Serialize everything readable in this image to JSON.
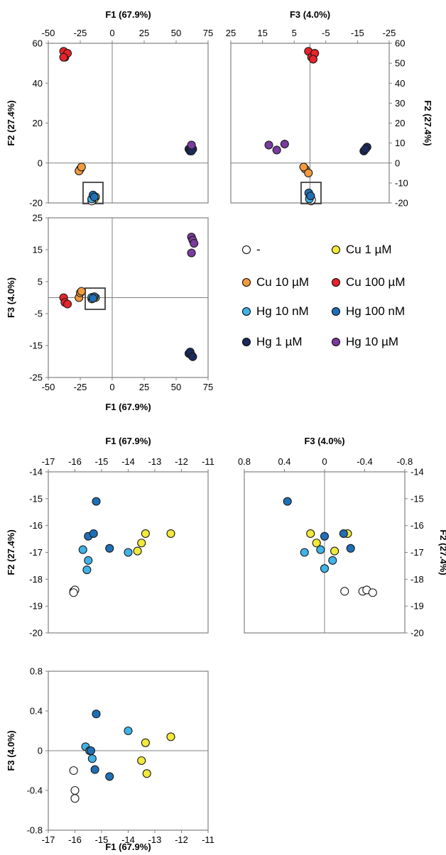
{
  "legend": [
    {
      "label": "-",
      "color": "#ffffff"
    },
    {
      "label": "Cu 1 µM",
      "color": "#f2e93a"
    },
    {
      "label": "Cu 10 µM",
      "color": "#f39a3c"
    },
    {
      "label": "Cu 100 µM",
      "color": "#e8232a"
    },
    {
      "label": "Hg 10 nM",
      "color": "#3fb3e6"
    },
    {
      "label": "Hg 100 nM",
      "color": "#1f6fb6"
    },
    {
      "label": "Hg 1 µM",
      "color": "#1b2a5c"
    },
    {
      "label": "Hg 10 µM",
      "color": "#7a3b9e"
    }
  ],
  "chart_data": [
    {
      "id": "overview-f1-f2",
      "type": "scatter",
      "xlabel": "F1 (67.9%)",
      "ylabel": "F2 (27.4%)",
      "xlim": [
        -50,
        75
      ],
      "ylim": [
        -20,
        60
      ],
      "xticks": [
        -50,
        -25,
        0,
        25,
        50,
        75
      ],
      "yticks": [
        -20,
        0,
        20,
        40,
        60
      ],
      "series": [
        {
          "name": "Cu 100 µM",
          "x": [
            -38,
            -37,
            -35,
            -38
          ],
          "y": [
            56,
            53,
            55,
            53
          ]
        },
        {
          "name": "Cu 10 µM",
          "x": [
            -25,
            -26,
            -24
          ],
          "y": [
            -3,
            -4,
            -2
          ]
        },
        {
          "name": "Hg 1 µM",
          "x": [
            60,
            62,
            61,
            63,
            62
          ],
          "y": [
            7,
            8,
            6,
            7,
            6
          ]
        },
        {
          "name": "Hg 10 µM",
          "x": [
            62
          ],
          "y": [
            9
          ]
        },
        {
          "name": "Cu 1 µM",
          "x": [
            -13,
            -14
          ],
          "y": [
            -17,
            -18
          ]
        },
        {
          "name": "-",
          "x": [
            -16,
            -16
          ],
          "y": [
            -19,
            -18
          ]
        },
        {
          "name": "Hg 10 nM",
          "x": [
            -15,
            -16
          ],
          "y": [
            -17,
            -18
          ]
        },
        {
          "name": "Hg 100 nM",
          "x": [
            -15,
            -14
          ],
          "y": [
            -16,
            -17
          ]
        }
      ]
    },
    {
      "id": "overview-f3-f2",
      "type": "scatter",
      "xlabel": "F3 (4.0%)",
      "ylabel": "F2 (27.4%)",
      "xlim": [
        25,
        -25
      ],
      "ylim": [
        -20,
        60
      ],
      "xticks": [
        25,
        15,
        5,
        -5,
        -15,
        -25
      ],
      "yticks": [
        -20,
        -10,
        0,
        10,
        20,
        30,
        40,
        50,
        60
      ],
      "series": [
        {
          "name": "Cu 100 µM",
          "x": [
            0.5,
            -0.5,
            -1.5,
            -1
          ],
          "y": [
            56,
            53,
            55,
            52
          ]
        },
        {
          "name": "Cu 10 µM",
          "x": [
            1.5,
            0.5,
            2
          ],
          "y": [
            -3,
            -5,
            -2
          ]
        },
        {
          "name": "Hg 10 µM",
          "x": [
            13,
            10.5,
            8
          ],
          "y": [
            9,
            6.5,
            9.5
          ]
        },
        {
          "name": "Hg 1 µM",
          "x": [
            -17,
            -18,
            -17.5
          ],
          "y": [
            6,
            8,
            7
          ]
        },
        {
          "name": "Cu 1 µM",
          "x": [
            -0.2,
            0.1
          ],
          "y": [
            -17,
            -18
          ]
        },
        {
          "name": "-",
          "x": [
            -0.3,
            -0.5
          ],
          "y": [
            -19,
            -18.5
          ]
        },
        {
          "name": "Hg 10 nM",
          "x": [
            0,
            0.2
          ],
          "y": [
            -17,
            -18
          ]
        },
        {
          "name": "Hg 100 nM",
          "x": [
            0.4,
            -0.2
          ],
          "y": [
            -15,
            -16.5
          ]
        }
      ]
    },
    {
      "id": "overview-f1-f3",
      "type": "scatter",
      "xlabel": "F1 (67.9%)",
      "ylabel": "F3 (4.0%)",
      "xlim": [
        -50,
        75
      ],
      "ylim": [
        -25,
        25
      ],
      "xticks": [
        -50,
        -25,
        0,
        25,
        50,
        75
      ],
      "yticks": [
        -25,
        -15,
        -5,
        5,
        15,
        25
      ],
      "series": [
        {
          "name": "Cu 100 µM",
          "x": [
            -38,
            -37,
            -35
          ],
          "y": [
            0,
            -1.5,
            -2
          ]
        },
        {
          "name": "Cu 10 µM",
          "x": [
            -26,
            -25,
            -24
          ],
          "y": [
            0,
            1.5,
            2
          ]
        },
        {
          "name": "Hg 10 µM",
          "x": [
            62,
            63,
            64,
            62
          ],
          "y": [
            19,
            18,
            17,
            14
          ]
        },
        {
          "name": "Hg 1 µM",
          "x": [
            60,
            62,
            61,
            63
          ],
          "y": [
            -17.5,
            -18,
            -17,
            -18.5
          ]
        },
        {
          "name": "Cu 1 µM",
          "x": [
            -13,
            -14
          ],
          "y": [
            0,
            0.2
          ]
        },
        {
          "name": "-",
          "x": [
            -16,
            -15
          ],
          "y": [
            -0.4,
            -0.2
          ]
        },
        {
          "name": "Hg 10 nM",
          "x": [
            -15,
            -16
          ],
          "y": [
            0,
            0.1
          ]
        },
        {
          "name": "Hg 100 nM",
          "x": [
            -14,
            -15
          ],
          "y": [
            0.3,
            -0.2
          ]
        }
      ]
    },
    {
      "id": "zoom-f1-f2",
      "type": "scatter",
      "xlabel": "F1 (67.9%)",
      "ylabel": "F2 (27.4%)",
      "xlim": [
        -17,
        -11
      ],
      "ylim": [
        -20,
        -14
      ],
      "xticks": [
        -17,
        -16,
        -15,
        -14,
        -13,
        -12,
        -11
      ],
      "yticks": [
        -20,
        -19,
        -18,
        -17,
        -16,
        -15,
        -14
      ],
      "series": [
        {
          "name": "-",
          "x": [
            -16.05,
            -16.0,
            -16.05
          ],
          "y": [
            -18.45,
            -18.4,
            -18.5
          ]
        },
        {
          "name": "Cu 1 µM",
          "x": [
            -12.4,
            -13.35,
            -13.5,
            -13.65
          ],
          "y": [
            -16.3,
            -16.3,
            -16.65,
            -16.95
          ]
        },
        {
          "name": "Hg 10 nM",
          "x": [
            -15.7,
            -15.5,
            -15.55,
            -14.0
          ],
          "y": [
            -16.9,
            -17.3,
            -17.65,
            -17.0
          ]
        },
        {
          "name": "Hg 100 nM",
          "x": [
            -15.2,
            -15.5,
            -15.3,
            -14.7
          ],
          "y": [
            -15.1,
            -16.4,
            -16.3,
            -16.85
          ]
        }
      ]
    },
    {
      "id": "zoom-f3-f2",
      "type": "scatter",
      "xlabel": "F3 (4.0%)",
      "ylabel": "F2 (27.4%)",
      "xlim": [
        0.8,
        -0.8
      ],
      "ylim": [
        -20,
        -14
      ],
      "xticks": [
        0.8,
        0.4,
        0.0,
        -0.4,
        -0.8
      ],
      "yticks": [
        -20,
        -19,
        -18,
        -17,
        -16,
        -15,
        -14
      ],
      "series": [
        {
          "name": "-",
          "x": [
            -0.2,
            -0.38,
            -0.42,
            -0.48
          ],
          "y": [
            -18.45,
            -18.45,
            -18.4,
            -18.5
          ]
        },
        {
          "name": "Cu 1 µM",
          "x": [
            0.14,
            0.08,
            -0.1,
            -0.23
          ],
          "y": [
            -16.3,
            -16.65,
            -16.95,
            -16.3
          ]
        },
        {
          "name": "Hg 10 nM",
          "x": [
            0.2,
            0.04,
            -0.08,
            0.0
          ],
          "y": [
            -17.0,
            -16.9,
            -17.3,
            -17.6
          ]
        },
        {
          "name": "Hg 100 nM",
          "x": [
            0.37,
            0.0,
            -0.19,
            -0.26
          ],
          "y": [
            -15.1,
            -16.4,
            -16.3,
            -16.85
          ]
        }
      ]
    },
    {
      "id": "zoom-f1-f3",
      "type": "scatter",
      "xlabel": "F1 (67.9%)",
      "ylabel": "F3 (4.0%)",
      "xlim": [
        -17,
        -11
      ],
      "ylim": [
        -0.8,
        0.8
      ],
      "xticks": [
        -17,
        -16,
        -15,
        -14,
        -13,
        -12,
        -11
      ],
      "yticks": [
        -0.8,
        -0.4,
        0.0,
        0.4,
        0.8
      ],
      "series": [
        {
          "name": "-",
          "x": [
            -16.05,
            -16.0,
            -16.0
          ],
          "y": [
            -0.2,
            -0.4,
            -0.48
          ]
        },
        {
          "name": "Cu 1 µM",
          "x": [
            -12.4,
            -13.35,
            -13.5,
            -13.3
          ],
          "y": [
            0.14,
            0.08,
            -0.1,
            -0.23
          ]
        },
        {
          "name": "Hg 10 nM",
          "x": [
            -14.0,
            -15.6,
            -15.45,
            -15.35
          ],
          "y": [
            0.2,
            0.04,
            0.0,
            -0.08
          ]
        },
        {
          "name": "Hg 100 nM",
          "x": [
            -15.2,
            -15.4,
            -15.25,
            -14.7
          ],
          "y": [
            0.37,
            0.0,
            -0.19,
            -0.26
          ]
        }
      ]
    }
  ]
}
